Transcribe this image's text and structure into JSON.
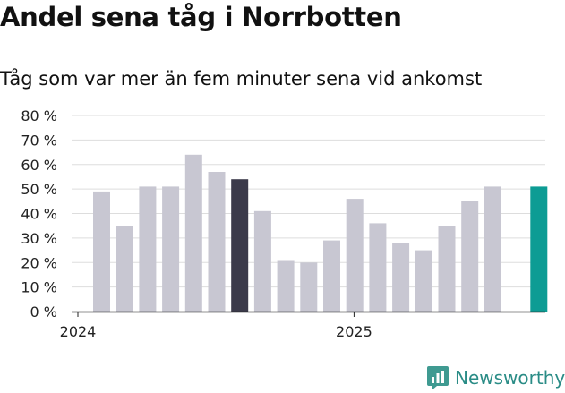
{
  "title": "Andel sena tåg i Norrbotten",
  "subtitle": "Tåg som var mer än fem minuter sena vid ankomst",
  "brand": {
    "name": "Newsworthy",
    "color": "#2a9d8f",
    "icon": "newsworthy-logo-icon"
  },
  "colors": {
    "bar_default": "#c8c7d2",
    "bar_highlight_dark": "#3b3a4a",
    "bar_highlight_teal": "#0d9c94",
    "gridline": "#dddddd",
    "axis": "#222222"
  },
  "chart_data": {
    "type": "bar",
    "title": "",
    "xlabel": "",
    "ylabel": "",
    "ylim": [
      0,
      80
    ],
    "yticks": [
      0,
      10,
      20,
      30,
      40,
      50,
      60,
      70,
      80
    ],
    "ytick_labels": [
      "0 %",
      "10 %",
      "20 %",
      "30 %",
      "40 %",
      "50 %",
      "60 %",
      "70 %",
      "80 %"
    ],
    "grid": true,
    "x_tick_labels": [
      {
        "label": "2024",
        "index": 0
      },
      {
        "label": "2025",
        "index": 12
      }
    ],
    "categories": [
      "2024-01",
      "2024-02",
      "2024-03",
      "2024-04",
      "2024-05",
      "2024-06",
      "2024-07",
      "2024-08",
      "2024-09",
      "2024-10",
      "2024-11",
      "2024-12",
      "2025-01",
      "2025-02",
      "2025-03",
      "2025-04",
      "2025-05",
      "2025-06",
      "2025-07",
      "2025-08"
    ],
    "values": [
      49,
      35,
      51,
      51,
      64,
      57,
      54,
      41,
      21,
      20,
      29,
      46,
      36,
      28,
      25,
      35,
      45,
      51,
      null,
      51
    ],
    "highlights": {
      "6": "bar_highlight_dark",
      "19": "bar_highlight_teal"
    }
  }
}
